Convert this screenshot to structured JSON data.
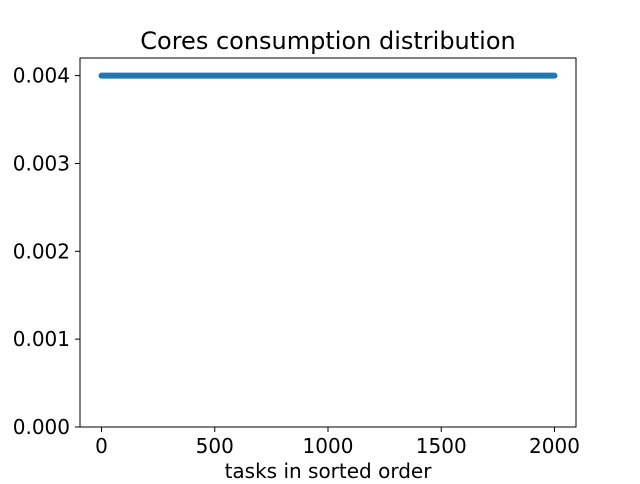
{
  "chart_data": {
    "type": "line",
    "title": "Cores consumption distribution",
    "xlabel": "tasks in sorted order",
    "ylabel": "",
    "xlim": [
      -95,
      2095
    ],
    "ylim": [
      0.0,
      0.0042
    ],
    "x_ticks": [
      0,
      500,
      1000,
      1500,
      2000
    ],
    "x_tick_labels": [
      "0",
      "500",
      "1000",
      "1500",
      "2000"
    ],
    "y_ticks": [
      0.0,
      0.001,
      0.002,
      0.003,
      0.004
    ],
    "y_tick_labels": [
      "0.000",
      "0.001",
      "0.002",
      "0.003",
      "0.004"
    ],
    "grid": false,
    "legend": false,
    "series": [
      {
        "x": [
          0,
          2000
        ],
        "values": [
          0.004,
          0.004
        ],
        "color": "#1f77b4"
      }
    ]
  }
}
